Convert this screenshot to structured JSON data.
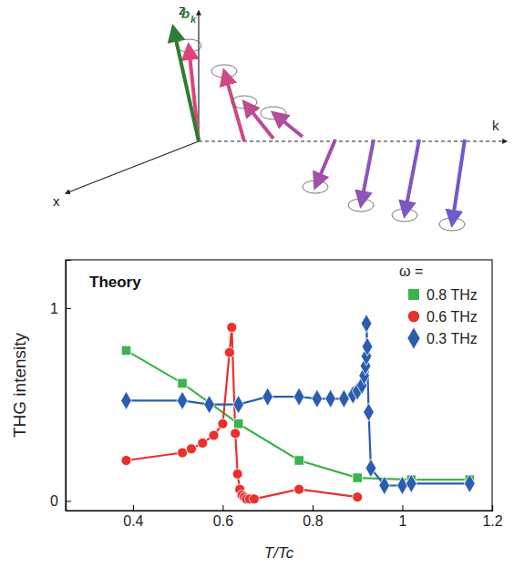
{
  "chart_data": {
    "type": "line",
    "title": "Theory",
    "xlabel": "T/Tc",
    "ylabel": "THG intensity",
    "legend_title": "ω =",
    "legend": "upper right",
    "xlim": [
      0.25,
      1.2
    ],
    "xticks": [
      0.4,
      0.6,
      0.8,
      1.0,
      1.2
    ],
    "ylim": [
      -0.05,
      1.25
    ],
    "yticks": [
      0,
      1
    ],
    "grid": false,
    "series": [
      {
        "name": "0.8 THz",
        "color": "#3cb44b",
        "marker": "square",
        "x": [
          0.385,
          0.51,
          0.635,
          0.77,
          0.9,
          1.02,
          1.15
        ],
        "values": [
          0.78,
          0.61,
          0.4,
          0.21,
          0.12,
          0.11,
          0.11
        ]
      },
      {
        "name": "0.6 THz",
        "color": "#e8312f",
        "marker": "circle",
        "x": [
          0.385,
          0.51,
          0.53,
          0.555,
          0.58,
          0.6,
          0.615,
          0.62,
          0.628,
          0.633,
          0.638,
          0.643,
          0.648,
          0.653,
          0.66,
          0.67,
          0.77,
          0.9
        ],
        "values": [
          0.21,
          0.25,
          0.27,
          0.3,
          0.34,
          0.4,
          0.77,
          0.9,
          0.35,
          0.14,
          0.06,
          0.03,
          0.02,
          0.01,
          0.01,
          0.01,
          0.06,
          0.02
        ]
      },
      {
        "name": "0.3 THz",
        "color": "#2a5db0",
        "marker": "diamond",
        "x": [
          0.385,
          0.51,
          0.57,
          0.635,
          0.7,
          0.77,
          0.81,
          0.84,
          0.87,
          0.89,
          0.9,
          0.91,
          0.915,
          0.918,
          0.92,
          0.922,
          0.92,
          0.925,
          0.93,
          0.96,
          1.0,
          1.02,
          1.15
        ],
        "values": [
          0.52,
          0.52,
          0.5,
          0.5,
          0.54,
          0.54,
          0.53,
          0.53,
          0.53,
          0.55,
          0.57,
          0.6,
          0.65,
          0.7,
          0.75,
          0.8,
          0.92,
          0.46,
          0.17,
          0.08,
          0.08,
          0.09,
          0.09
        ]
      }
    ]
  },
  "diagram": {
    "axis_labels": [
      "z",
      "x",
      "k"
    ],
    "vector_label": "b",
    "vector_subscript": "k"
  }
}
